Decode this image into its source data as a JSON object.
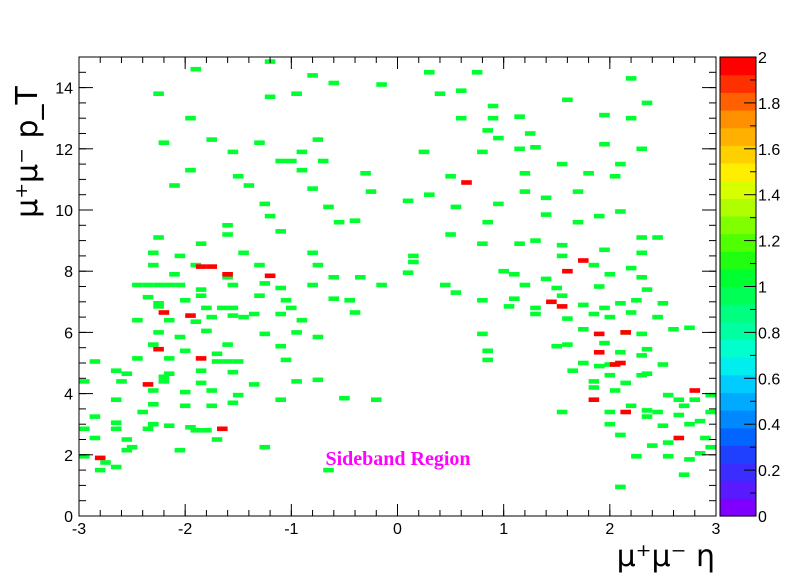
{
  "chart_data": {
    "type": "heatmap",
    "xlabel": "μ⁺μ⁻ η",
    "ylabel": "μ⁺μ⁻ p_T",
    "xlim": [
      -3,
      3
    ],
    "ylim": [
      0,
      15
    ],
    "x_ticks": [
      "-3",
      "-2",
      "-1",
      "0",
      "1",
      "2",
      "3"
    ],
    "y_ticks": [
      "0",
      "2",
      "4",
      "6",
      "8",
      "10",
      "12",
      "14"
    ],
    "annotation": "Sideband Region",
    "colorbar": {
      "range": [
        0,
        2
      ],
      "tick_labels": [
        "0",
        "0.2",
        "0.4",
        "0.6",
        "0.8",
        "1",
        "1.2",
        "1.4",
        "1.6",
        "1.8",
        "2"
      ],
      "colors": [
        "#7f00ff",
        "#5a1aff",
        "#3b2dff",
        "#2040ff",
        "#0066ff",
        "#0088ff",
        "#00aaff",
        "#00ccff",
        "#00eeee",
        "#00ffcc",
        "#00ffa0",
        "#00ff80",
        "#00ff55",
        "#00ff30",
        "#20ff10",
        "#50ff00",
        "#80ff00",
        "#b0ff00",
        "#d8ff00",
        "#ffee00",
        "#ffd000",
        "#ffb000",
        "#ff9000",
        "#ff6000",
        "#ff3000",
        "#ff0000"
      ]
    },
    "bin_width_x": 0.1,
    "bin_height_y": 0.15,
    "cells_value_1": [
      [
        -1.9,
        14.6
      ],
      [
        -1.2,
        14.85
      ],
      [
        -0.8,
        14.4
      ],
      [
        -0.6,
        14.15
      ],
      [
        -0.15,
        14.1
      ],
      [
        0.3,
        14.5
      ],
      [
        0.75,
        14.5
      ],
      [
        2.2,
        14.3
      ],
      [
        -0.95,
        13.8
      ],
      [
        0.4,
        13.8
      ],
      [
        0.6,
        13.9
      ],
      [
        1.6,
        13.6
      ],
      [
        -2.25,
        13.8
      ],
      [
        0.9,
        13.4
      ],
      [
        2.35,
        13.5
      ],
      [
        -1.2,
        13.7
      ],
      [
        -1.95,
        13.0
      ],
      [
        0.6,
        13.0
      ],
      [
        0.9,
        13.0
      ],
      [
        1.15,
        13.05
      ],
      [
        1.95,
        13.1
      ],
      [
        2.2,
        13.0
      ],
      [
        -2.2,
        12.2
      ],
      [
        -1.75,
        12.3
      ],
      [
        -1.3,
        12.2
      ],
      [
        -0.75,
        12.3
      ],
      [
        0.95,
        12.35
      ],
      [
        1.15,
        12.0
      ],
      [
        1.3,
        12.05
      ],
      [
        1.95,
        12.15
      ],
      [
        2.3,
        12.0
      ],
      [
        0.85,
        12.6
      ],
      [
        1.25,
        12.5
      ],
      [
        -1.55,
        11.9
      ],
      [
        -1.1,
        11.6
      ],
      [
        -1.0,
        11.6
      ],
      [
        -0.7,
        11.6
      ],
      [
        -0.9,
        11.9
      ],
      [
        0.25,
        11.9
      ],
      [
        0.8,
        11.9
      ],
      [
        1.55,
        11.5
      ],
      [
        2.1,
        11.5
      ],
      [
        -1.95,
        11.3
      ],
      [
        -0.9,
        11.3
      ],
      [
        -0.3,
        11.2
      ],
      [
        0.5,
        11.1
      ],
      [
        1.2,
        11.2
      ],
      [
        1.8,
        11.2
      ],
      [
        2.05,
        11.1
      ],
      [
        -1.5,
        11.1
      ],
      [
        -2.1,
        10.8
      ],
      [
        -1.4,
        10.8
      ],
      [
        -0.8,
        10.7
      ],
      [
        -0.25,
        10.6
      ],
      [
        0.3,
        10.5
      ],
      [
        1.2,
        10.6
      ],
      [
        1.7,
        10.6
      ],
      [
        -1.25,
        10.2
      ],
      [
        -0.65,
        10.1
      ],
      [
        0.1,
        10.3
      ],
      [
        0.55,
        10.1
      ],
      [
        0.95,
        10.2
      ],
      [
        1.4,
        10.4
      ],
      [
        -1.6,
        9.5
      ],
      [
        -1.2,
        9.8
      ],
      [
        -0.55,
        9.6
      ],
      [
        -0.4,
        9.65
      ],
      [
        0.85,
        9.6
      ],
      [
        1.4,
        9.85
      ],
      [
        1.7,
        9.6
      ],
      [
        1.9,
        9.8
      ],
      [
        2.1,
        9.95
      ],
      [
        -2.25,
        9.1
      ],
      [
        -1.6,
        9.2
      ],
      [
        -1.1,
        9.3
      ],
      [
        0.5,
        9.2
      ],
      [
        1.3,
        9.0
      ],
      [
        1.55,
        8.85
      ],
      [
        2.3,
        9.1
      ],
      [
        2.45,
        9.1
      ],
      [
        -2.3,
        8.6
      ],
      [
        -1.85,
        8.9
      ],
      [
        -1.45,
        8.6
      ],
      [
        -0.8,
        8.6
      ],
      [
        0.15,
        8.5
      ],
      [
        0.8,
        8.9
      ],
      [
        1.15,
        8.9
      ],
      [
        1.55,
        8.5
      ],
      [
        1.95,
        8.7
      ],
      [
        2.3,
        8.6
      ],
      [
        -2.05,
        8.5
      ],
      [
        -2.3,
        8.2
      ],
      [
        -1.9,
        8.2
      ],
      [
        -1.3,
        8.2
      ],
      [
        -0.75,
        8.2
      ],
      [
        0.15,
        8.3
      ],
      [
        1.0,
        8.0
      ],
      [
        1.85,
        8.2
      ],
      [
        2.2,
        8.1
      ],
      [
        -2.1,
        7.9
      ],
      [
        -1.6,
        7.8
      ],
      [
        -1.25,
        7.6
      ],
      [
        -0.6,
        7.8
      ],
      [
        -0.35,
        7.8
      ],
      [
        0.1,
        7.95
      ],
      [
        1.1,
        7.9
      ],
      [
        1.4,
        7.75
      ],
      [
        2.0,
        7.9
      ],
      [
        2.3,
        7.8
      ],
      [
        -2.45,
        7.55
      ],
      [
        -2.35,
        7.55
      ],
      [
        -2.25,
        7.55
      ],
      [
        -2.15,
        7.55
      ],
      [
        -2.05,
        7.55
      ],
      [
        -1.85,
        7.4
      ],
      [
        -1.55,
        7.55
      ],
      [
        -1.1,
        7.45
      ],
      [
        -0.8,
        7.55
      ],
      [
        -0.15,
        7.55
      ],
      [
        0.45,
        7.55
      ],
      [
        1.2,
        7.55
      ],
      [
        1.5,
        7.45
      ],
      [
        1.9,
        7.5
      ],
      [
        2.35,
        7.4
      ],
      [
        0.55,
        7.3
      ],
      [
        -2.35,
        7.15
      ],
      [
        -1.85,
        7.2
      ],
      [
        -1.3,
        7.2
      ],
      [
        -1.05,
        7.05
      ],
      [
        -0.6,
        7.1
      ],
      [
        -0.45,
        7.05
      ],
      [
        0.8,
        7.05
      ],
      [
        1.1,
        7.1
      ],
      [
        1.55,
        7.2
      ],
      [
        2.25,
        7.05
      ],
      [
        -2.0,
        7.05
      ],
      [
        -2.25,
        6.85
      ],
      [
        -2.25,
        6.95
      ],
      [
        -1.8,
        6.8
      ],
      [
        -1.55,
        6.8
      ],
      [
        -1.65,
        6.8
      ],
      [
        -1.0,
        6.8
      ],
      [
        -0.4,
        6.65
      ],
      [
        1.05,
        6.85
      ],
      [
        1.3,
        6.8
      ],
      [
        1.75,
        6.9
      ],
      [
        1.95,
        6.8
      ],
      [
        2.1,
        6.95
      ],
      [
        2.5,
        6.95
      ],
      [
        -2.45,
        6.4
      ],
      [
        -2.15,
        6.4
      ],
      [
        -1.9,
        6.35
      ],
      [
        -1.75,
        6.5
      ],
      [
        -1.45,
        6.5
      ],
      [
        -1.35,
        6.6
      ],
      [
        -1.1,
        6.6
      ],
      [
        -0.9,
        6.4
      ],
      [
        1.3,
        6.6
      ],
      [
        1.6,
        6.45
      ],
      [
        1.85,
        6.6
      ],
      [
        2.0,
        6.5
      ],
      [
        2.2,
        6.65
      ],
      [
        2.45,
        6.5
      ],
      [
        -1.55,
        6.55
      ],
      [
        -2.25,
        6.0
      ],
      [
        -2.05,
        5.85
      ],
      [
        -1.8,
        6.05
      ],
      [
        -1.25,
        5.95
      ],
      [
        -0.95,
        6.0
      ],
      [
        -0.75,
        5.85
      ],
      [
        0.8,
        5.95
      ],
      [
        1.75,
        6.1
      ],
      [
        2.15,
        6.0
      ],
      [
        2.3,
        5.95
      ],
      [
        2.75,
        6.15
      ],
      [
        2.6,
        6.1
      ],
      [
        -2.3,
        5.6
      ],
      [
        -1.6,
        5.6
      ],
      [
        -2.0,
        5.4
      ],
      [
        -1.7,
        5.3
      ],
      [
        -1.1,
        5.55
      ],
      [
        0.85,
        5.4
      ],
      [
        1.5,
        5.55
      ],
      [
        1.95,
        5.65
      ],
      [
        2.1,
        5.35
      ],
      [
        2.35,
        5.45
      ],
      [
        1.6,
        5.6
      ],
      [
        -2.15,
        5.15
      ],
      [
        -2.45,
        5.15
      ],
      [
        -1.7,
        5.05
      ],
      [
        -1.6,
        5.05
      ],
      [
        -1.5,
        5.05
      ],
      [
        -1.05,
        5.1
      ],
      [
        0.85,
        5.1
      ],
      [
        1.75,
        5.0
      ],
      [
        2.0,
        4.95
      ],
      [
        2.3,
        5.25
      ],
      [
        2.5,
        4.95
      ],
      [
        -2.85,
        5.05
      ],
      [
        -2.65,
        4.75
      ],
      [
        -2.55,
        4.65
      ],
      [
        -2.15,
        4.65
      ],
      [
        -1.85,
        4.75
      ],
      [
        -1.55,
        4.7
      ],
      [
        1.65,
        4.75
      ],
      [
        2.0,
        4.6
      ],
      [
        2.35,
        4.65
      ],
      [
        1.9,
        4.9
      ],
      [
        -2.95,
        4.4
      ],
      [
        -2.6,
        4.4
      ],
      [
        -2.2,
        4.4
      ],
      [
        -2.2,
        4.55
      ],
      [
        -1.85,
        4.35
      ],
      [
        -1.35,
        4.3
      ],
      [
        -0.95,
        4.4
      ],
      [
        -0.75,
        4.45
      ],
      [
        1.85,
        4.4
      ],
      [
        2.15,
        4.35
      ],
      [
        2.3,
        4.6
      ],
      [
        -2.3,
        4.1
      ],
      [
        -2.0,
        4.05
      ],
      [
        -1.75,
        4.1
      ],
      [
        -1.5,
        3.95
      ],
      [
        -1.1,
        3.8
      ],
      [
        -0.5,
        3.85
      ],
      [
        -0.2,
        3.8
      ],
      [
        1.85,
        4.2
      ],
      [
        2.05,
        4.1
      ],
      [
        2.55,
        3.95
      ],
      [
        2.8,
        3.8
      ],
      [
        2.95,
        3.95
      ],
      [
        2.65,
        3.8
      ],
      [
        -2.65,
        3.8
      ],
      [
        -2.3,
        3.65
      ],
      [
        -2.0,
        3.6
      ],
      [
        -1.75,
        3.6
      ],
      [
        -1.55,
        3.7
      ],
      [
        -2.4,
        3.4
      ],
      [
        1.55,
        3.4
      ],
      [
        2.0,
        3.4
      ],
      [
        2.35,
        3.45
      ],
      [
        2.7,
        3.6
      ],
      [
        2.65,
        3.3
      ],
      [
        2.45,
        3.4
      ],
      [
        2.2,
        3.6
      ],
      [
        2.95,
        3.4
      ],
      [
        -2.85,
        3.25
      ],
      [
        -2.65,
        3.05
      ],
      [
        -2.3,
        3.0
      ],
      [
        -2.15,
        2.95
      ],
      [
        -1.95,
        2.9
      ],
      [
        -1.9,
        2.8
      ],
      [
        -1.8,
        2.8
      ],
      [
        2.0,
        3.0
      ],
      [
        2.35,
        3.25
      ],
      [
        2.5,
        2.95
      ],
      [
        2.85,
        3.1
      ],
      [
        2.75,
        3.0
      ],
      [
        -2.95,
        2.85
      ],
      [
        -2.85,
        2.55
      ],
      [
        -2.55,
        2.5
      ],
      [
        -2.5,
        2.25
      ],
      [
        -2.55,
        2.15
      ],
      [
        -2.05,
        2.15
      ],
      [
        -1.7,
        2.5
      ],
      [
        -1.25,
        2.25
      ],
      [
        2.1,
        2.65
      ],
      [
        2.4,
        2.3
      ],
      [
        2.55,
        2.4
      ],
      [
        2.9,
        2.55
      ],
      [
        2.95,
        2.25
      ],
      [
        2.85,
        2.05
      ],
      [
        -2.95,
        1.95
      ],
      [
        -2.75,
        1.75
      ],
      [
        -2.65,
        1.6
      ],
      [
        -2.8,
        1.5
      ],
      [
        -0.65,
        1.5
      ],
      [
        2.25,
        1.95
      ],
      [
        2.55,
        1.95
      ],
      [
        2.75,
        1.85
      ],
      [
        2.7,
        1.35
      ],
      [
        2.1,
        0.95
      ],
      [
        -2.65,
        2.85
      ],
      [
        -2.35,
        2.85
      ]
    ],
    "cells_value_2": [
      [
        -2.2,
        6.65
      ],
      [
        -1.95,
        6.55
      ],
      [
        -1.85,
        8.15
      ],
      [
        -1.75,
        8.15
      ],
      [
        -1.6,
        7.9
      ],
      [
        -1.2,
        7.85
      ],
      [
        -2.25,
        5.45
      ],
      [
        -1.85,
        5.15
      ],
      [
        -2.35,
        4.3
      ],
      [
        -1.65,
        2.85
      ],
      [
        -2.8,
        1.9
      ],
      [
        0.65,
        10.9
      ],
      [
        1.45,
        7.0
      ],
      [
        1.55,
        6.85
      ],
      [
        1.6,
        8.0
      ],
      [
        1.75,
        8.35
      ],
      [
        1.9,
        5.95
      ],
      [
        1.9,
        5.35
      ],
      [
        2.1,
        5.0
      ],
      [
        1.85,
        3.8
      ],
      [
        2.15,
        3.4
      ],
      [
        2.05,
        4.95
      ],
      [
        2.65,
        2.55
      ],
      [
        2.8,
        4.1
      ],
      [
        2.15,
        6.0
      ]
    ]
  }
}
